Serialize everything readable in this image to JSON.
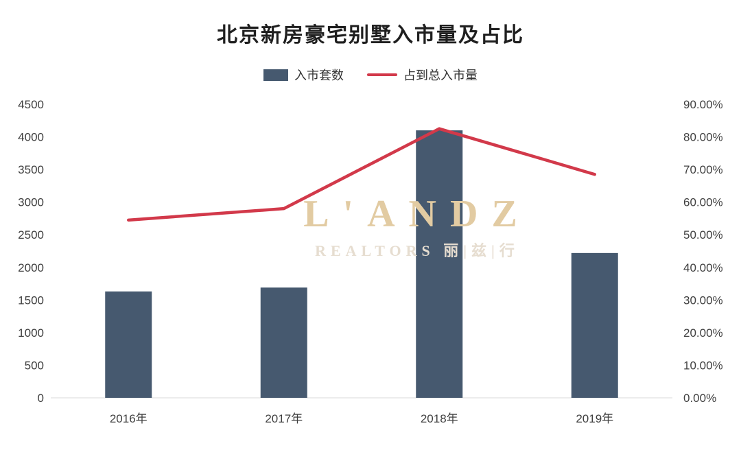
{
  "title": "北京新房豪宅别墅入市量及占比",
  "legend": [
    {
      "label": "入市套数",
      "type": "bar",
      "color": "#46596F"
    },
    {
      "label": "占到总入市量",
      "type": "line",
      "color": "#D2394A"
    }
  ],
  "watermark": {
    "line1": "L'ANDZ",
    "line2": "REALTORS 丽|兹|行",
    "color1": "#E2CBA2",
    "color2": "#E6DDD0"
  },
  "chart_data": {
    "type": "bar",
    "title": "北京新房豪宅别墅入市量及占比",
    "categories": [
      "2016年",
      "2017年",
      "2018年",
      "2019年"
    ],
    "series": [
      {
        "name": "入市套数",
        "type": "bar",
        "axis": "left",
        "color": "#46596F",
        "values": [
          1630,
          1690,
          4100,
          2220
        ]
      },
      {
        "name": "占到总入市量",
        "type": "line",
        "axis": "right",
        "color": "#D2394A",
        "values": [
          54.5,
          58.0,
          82.5,
          68.5
        ]
      }
    ],
    "left_axis": {
      "min": 0,
      "max": 4500,
      "step": 500,
      "ticks": [
        "4500",
        "4000",
        "3500",
        "3000",
        "2500",
        "2000",
        "1500",
        "1000",
        "500",
        "0"
      ]
    },
    "right_axis": {
      "min": 0,
      "max": 90,
      "step": 10,
      "ticks": [
        "90.00%",
        "80.00%",
        "70.00%",
        "60.00%",
        "50.00%",
        "40.00%",
        "30.00%",
        "20.00%",
        "10.00%",
        "0.00%"
      ]
    },
    "grid": false,
    "legend_position": "top",
    "axis_line_color": "#D9D9D9"
  }
}
